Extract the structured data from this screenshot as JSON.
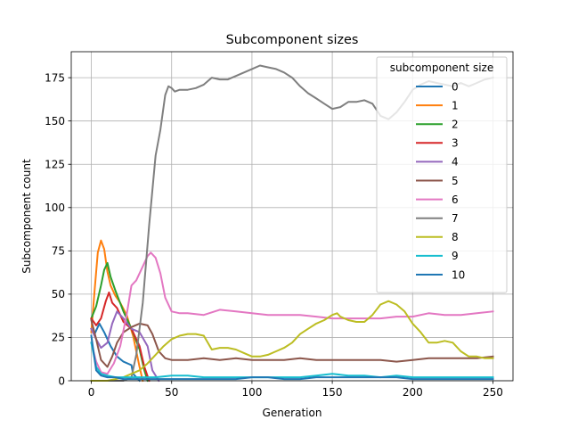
{
  "chart_data": {
    "type": "line",
    "title": "Subcomponent sizes",
    "xlabel": "Generation",
    "ylabel": "Subcomponent count",
    "xlim": [
      -12.5,
      262.5
    ],
    "ylim": [
      0,
      190
    ],
    "xticks": [
      0,
      50,
      100,
      150,
      200,
      250
    ],
    "yticks": [
      0,
      25,
      50,
      75,
      100,
      125,
      150,
      175
    ],
    "grid": true,
    "legend": {
      "title": "subcomponent size",
      "placement": "top-right"
    },
    "series": [
      {
        "name": "0",
        "color": "#1f77b4",
        "x": [
          0,
          2,
          5,
          8,
          12,
          16,
          20,
          25,
          26,
          30
        ],
        "y": [
          30,
          27,
          33,
          28,
          20,
          14,
          11,
          9,
          4,
          0
        ]
      },
      {
        "name": "1",
        "color": "#ff7f0e",
        "x": [
          0,
          2,
          4,
          6,
          8,
          10,
          12,
          15,
          18,
          22,
          26,
          30,
          32
        ],
        "y": [
          28,
          52,
          74,
          81,
          76,
          63,
          55,
          49,
          45,
          38,
          26,
          8,
          0
        ]
      },
      {
        "name": "2",
        "color": "#2ca02c",
        "x": [
          0,
          3,
          6,
          8,
          10,
          12,
          15,
          20,
          25,
          30,
          33,
          35
        ],
        "y": [
          36,
          43,
          55,
          64,
          68,
          60,
          52,
          40,
          30,
          18,
          6,
          0
        ]
      },
      {
        "name": "3",
        "color": "#d62728",
        "x": [
          0,
          3,
          6,
          9,
          11,
          13,
          16,
          20,
          25,
          30,
          33,
          36
        ],
        "y": [
          36,
          32,
          36,
          46,
          51,
          45,
          42,
          34,
          30,
          20,
          8,
          0
        ]
      },
      {
        "name": "4",
        "color": "#9467bd",
        "x": [
          0,
          3,
          6,
          10,
          13,
          16,
          20,
          25,
          30,
          35,
          38,
          42
        ],
        "y": [
          30,
          24,
          19,
          22,
          33,
          40,
          36,
          30,
          28,
          20,
          6,
          0
        ]
      },
      {
        "name": "5",
        "color": "#8c564b",
        "x": [
          0,
          3,
          6,
          10,
          13,
          16,
          20,
          25,
          30,
          35,
          38,
          42,
          46,
          50,
          60,
          70,
          80,
          90,
          100,
          110,
          120,
          130,
          140,
          150,
          160,
          170,
          180,
          190,
          200,
          210,
          220,
          230,
          240,
          250
        ],
        "y": [
          35,
          24,
          12,
          8,
          14,
          22,
          28,
          31,
          33,
          32,
          27,
          17,
          13,
          12,
          12,
          13,
          12,
          13,
          12,
          12,
          12,
          13,
          12,
          12,
          12,
          12,
          12,
          11,
          12,
          13,
          13,
          13,
          13,
          14
        ]
      },
      {
        "name": "6",
        "color": "#e377c2",
        "x": [
          0,
          3,
          6,
          10,
          14,
          18,
          22,
          25,
          28,
          32,
          35,
          37,
          40,
          43,
          46,
          50,
          55,
          60,
          70,
          80,
          90,
          100,
          110,
          120,
          130,
          140,
          150,
          160,
          170,
          180,
          190,
          200,
          210,
          220,
          230,
          240,
          250
        ],
        "y": [
          22,
          11,
          5,
          4,
          10,
          20,
          38,
          55,
          58,
          66,
          72,
          74,
          71,
          62,
          48,
          40,
          39,
          39,
          38,
          41,
          40,
          39,
          38,
          38,
          38,
          37,
          36,
          36,
          36,
          36,
          37,
          37,
          39,
          38,
          38,
          39,
          40
        ]
      },
      {
        "name": "7",
        "color": "#7f7f7f",
        "x": [
          0,
          5,
          10,
          15,
          20,
          25,
          28,
          32,
          36,
          40,
          43,
          46,
          48,
          50,
          52,
          55,
          60,
          65,
          70,
          75,
          80,
          85,
          90,
          95,
          100,
          105,
          110,
          115,
          120,
          125,
          130,
          135,
          140,
          145,
          150,
          155,
          160,
          165,
          170,
          175,
          180,
          185,
          190,
          195,
          200,
          205,
          210,
          215,
          220,
          225,
          230,
          235,
          240,
          245,
          250
        ],
        "y": [
          0,
          0,
          0,
          0,
          0,
          2,
          15,
          45,
          90,
          130,
          145,
          165,
          170,
          169,
          167,
          168,
          168,
          169,
          171,
          175,
          174,
          174,
          176,
          178,
          180,
          182,
          181,
          180,
          178,
          175,
          170,
          166,
          163,
          160,
          157,
          158,
          161,
          161,
          162,
          160,
          153,
          151,
          155,
          161,
          168,
          171,
          173,
          172,
          171,
          170,
          172,
          170,
          172,
          174,
          175
        ]
      },
      {
        "name": "8",
        "color": "#bcbd22",
        "x": [
          0,
          5,
          10,
          15,
          20,
          25,
          30,
          35,
          40,
          45,
          50,
          55,
          60,
          65,
          70,
          75,
          80,
          85,
          90,
          95,
          100,
          105,
          110,
          115,
          120,
          125,
          130,
          135,
          140,
          145,
          150,
          153,
          155,
          160,
          165,
          170,
          175,
          180,
          185,
          190,
          195,
          200,
          205,
          210,
          215,
          220,
          225,
          230,
          235,
          240,
          245,
          250
        ],
        "y": [
          0,
          0,
          0,
          1,
          2,
          4,
          6,
          10,
          15,
          20,
          24,
          26,
          27,
          27,
          26,
          18,
          19,
          19,
          18,
          16,
          14,
          14,
          15,
          17,
          19,
          22,
          27,
          30,
          33,
          35,
          38,
          39,
          37,
          35,
          34,
          34,
          38,
          44,
          46,
          44,
          40,
          33,
          28,
          22,
          22,
          23,
          22,
          17,
          14,
          14,
          13,
          13
        ]
      },
      {
        "name": "9",
        "color": "#17becf",
        "x": [
          0,
          3,
          6,
          10,
          15,
          20,
          30,
          40,
          50,
          60,
          70,
          80,
          90,
          100,
          110,
          120,
          130,
          140,
          150,
          160,
          170,
          180,
          190,
          200,
          210,
          220,
          230,
          240,
          250
        ],
        "y": [
          22,
          8,
          4,
          3,
          2,
          2,
          2,
          2,
          3,
          3,
          2,
          2,
          2,
          2,
          2,
          2,
          2,
          3,
          4,
          3,
          3,
          2,
          3,
          2,
          2,
          2,
          2,
          2,
          2
        ]
      },
      {
        "name": "10",
        "color": "#1f77b4",
        "x": [
          0,
          3,
          6,
          10,
          15,
          20,
          30,
          40,
          50,
          60,
          70,
          80,
          90,
          100,
          110,
          120,
          130,
          140,
          150,
          160,
          170,
          180,
          190,
          200,
          210,
          220,
          230,
          240,
          250
        ],
        "y": [
          26,
          6,
          3,
          2,
          2,
          1,
          1,
          1,
          1,
          1,
          1,
          1,
          1,
          2,
          2,
          1,
          1,
          2,
          2,
          2,
          2,
          2,
          2,
          1,
          1,
          1,
          1,
          1,
          1
        ]
      }
    ]
  }
}
